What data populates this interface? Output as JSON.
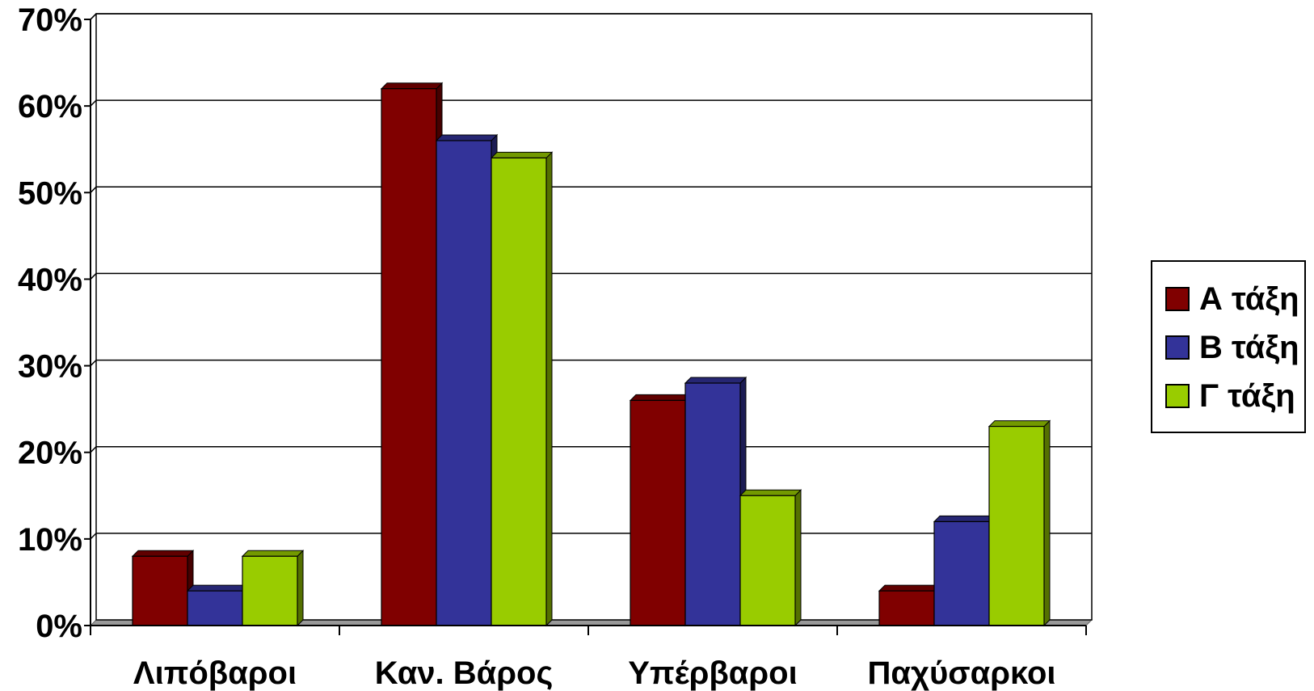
{
  "chart_data": {
    "type": "bar",
    "categories": [
      "Λιπόβαροι",
      "Καν. Βάρος",
      "Υπέρβαροι",
      "Παχύσαρκοι"
    ],
    "series": [
      {
        "name": "Α τάξη",
        "color": "#800000",
        "values": [
          8,
          62,
          26,
          4
        ]
      },
      {
        "name": "Β τάξη",
        "color": "#333399",
        "values": [
          4,
          56,
          28,
          12
        ]
      },
      {
        "name": "Γ τάξη",
        "color": "#99CC00",
        "values": [
          8,
          54,
          15,
          23
        ]
      }
    ],
    "yticks": [
      "0%",
      "10%",
      "20%",
      "30%",
      "40%",
      "50%",
      "60%",
      "70%"
    ],
    "ylim": [
      0,
      70
    ],
    "grid": true,
    "legend_position": "right",
    "title": "",
    "xlabel": "",
    "ylabel": ""
  }
}
